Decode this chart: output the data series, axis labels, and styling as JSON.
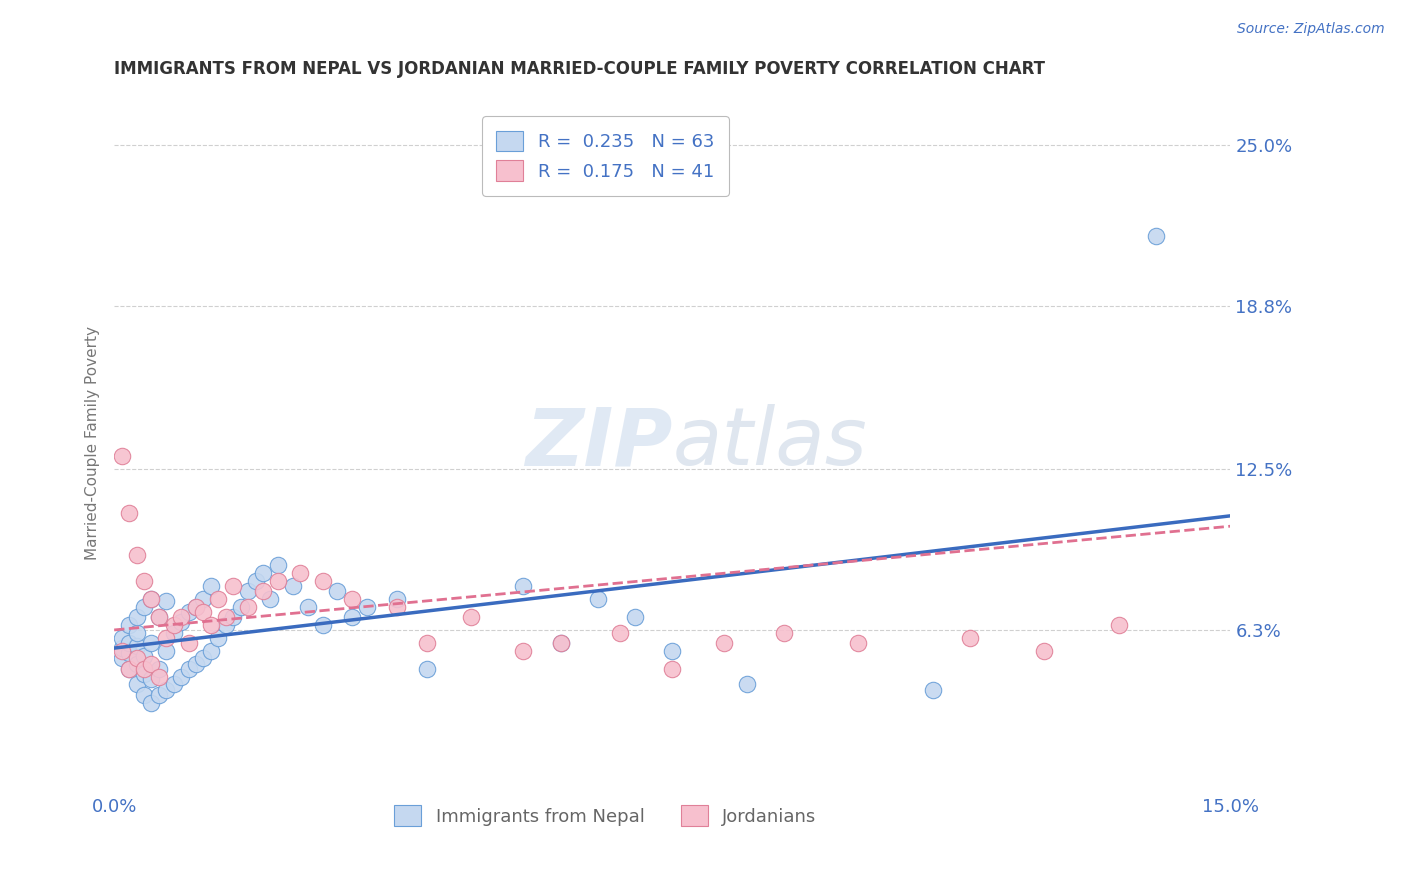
{
  "title": "IMMIGRANTS FROM NEPAL VS JORDANIAN MARRIED-COUPLE FAMILY POVERTY CORRELATION CHART",
  "source": "Source: ZipAtlas.com",
  "ylabel": "Married-Couple Family Poverty",
  "xlim": [
    0.0,
    0.15
  ],
  "ylim": [
    0.0,
    0.27
  ],
  "xtick_labels": [
    "0.0%",
    "15.0%"
  ],
  "xtick_positions": [
    0.0,
    0.15
  ],
  "ytick_labels": [
    "6.3%",
    "12.5%",
    "18.8%",
    "25.0%"
  ],
  "ytick_positions": [
    0.063,
    0.125,
    0.188,
    0.25
  ],
  "r_nepal": 0.235,
  "n_nepal": 63,
  "r_jordan": 0.175,
  "n_jordan": 41,
  "nepal_color": "#c5d8f0",
  "jordan_color": "#f7c0ce",
  "nepal_edge_color": "#6a9fd8",
  "jordan_edge_color": "#e08098",
  "regression_line_color_nepal": "#3a6bbf",
  "regression_line_color_jordan": "#e07090",
  "watermark_color": "#d8e6f3",
  "background_color": "#ffffff",
  "grid_color": "#d0d0d0",
  "title_color": "#333333",
  "axis_label_color": "#4472c4",
  "nepal_scatter_x": [
    0.001,
    0.001,
    0.001,
    0.002,
    0.002,
    0.002,
    0.002,
    0.003,
    0.003,
    0.003,
    0.003,
    0.003,
    0.004,
    0.004,
    0.004,
    0.004,
    0.005,
    0.005,
    0.005,
    0.005,
    0.006,
    0.006,
    0.006,
    0.007,
    0.007,
    0.007,
    0.008,
    0.008,
    0.009,
    0.009,
    0.01,
    0.01,
    0.011,
    0.011,
    0.012,
    0.012,
    0.013,
    0.013,
    0.014,
    0.015,
    0.016,
    0.017,
    0.018,
    0.019,
    0.02,
    0.021,
    0.022,
    0.024,
    0.026,
    0.028,
    0.03,
    0.032,
    0.034,
    0.038,
    0.042,
    0.055,
    0.06,
    0.065,
    0.07,
    0.075,
    0.085,
    0.11,
    0.14
  ],
  "nepal_scatter_y": [
    0.052,
    0.056,
    0.06,
    0.048,
    0.054,
    0.058,
    0.065,
    0.042,
    0.05,
    0.057,
    0.062,
    0.068,
    0.038,
    0.046,
    0.053,
    0.072,
    0.035,
    0.044,
    0.058,
    0.075,
    0.038,
    0.048,
    0.068,
    0.04,
    0.055,
    0.074,
    0.042,
    0.062,
    0.045,
    0.066,
    0.048,
    0.07,
    0.05,
    0.072,
    0.052,
    0.075,
    0.055,
    0.08,
    0.06,
    0.065,
    0.068,
    0.072,
    0.078,
    0.082,
    0.085,
    0.075,
    0.088,
    0.08,
    0.072,
    0.065,
    0.078,
    0.068,
    0.072,
    0.075,
    0.048,
    0.08,
    0.058,
    0.075,
    0.068,
    0.055,
    0.042,
    0.04,
    0.215
  ],
  "jordan_scatter_x": [
    0.001,
    0.001,
    0.002,
    0.002,
    0.003,
    0.003,
    0.004,
    0.004,
    0.005,
    0.005,
    0.006,
    0.006,
    0.007,
    0.008,
    0.009,
    0.01,
    0.011,
    0.012,
    0.013,
    0.014,
    0.015,
    0.016,
    0.018,
    0.02,
    0.022,
    0.025,
    0.028,
    0.032,
    0.038,
    0.042,
    0.048,
    0.055,
    0.06,
    0.068,
    0.075,
    0.082,
    0.09,
    0.1,
    0.115,
    0.125,
    0.135
  ],
  "jordan_scatter_y": [
    0.055,
    0.13,
    0.048,
    0.108,
    0.052,
    0.092,
    0.048,
    0.082,
    0.05,
    0.075,
    0.045,
    0.068,
    0.06,
    0.065,
    0.068,
    0.058,
    0.072,
    0.07,
    0.065,
    0.075,
    0.068,
    0.08,
    0.072,
    0.078,
    0.082,
    0.085,
    0.082,
    0.075,
    0.072,
    0.058,
    0.068,
    0.055,
    0.058,
    0.062,
    0.048,
    0.058,
    0.062,
    0.058,
    0.06,
    0.055,
    0.065
  ]
}
